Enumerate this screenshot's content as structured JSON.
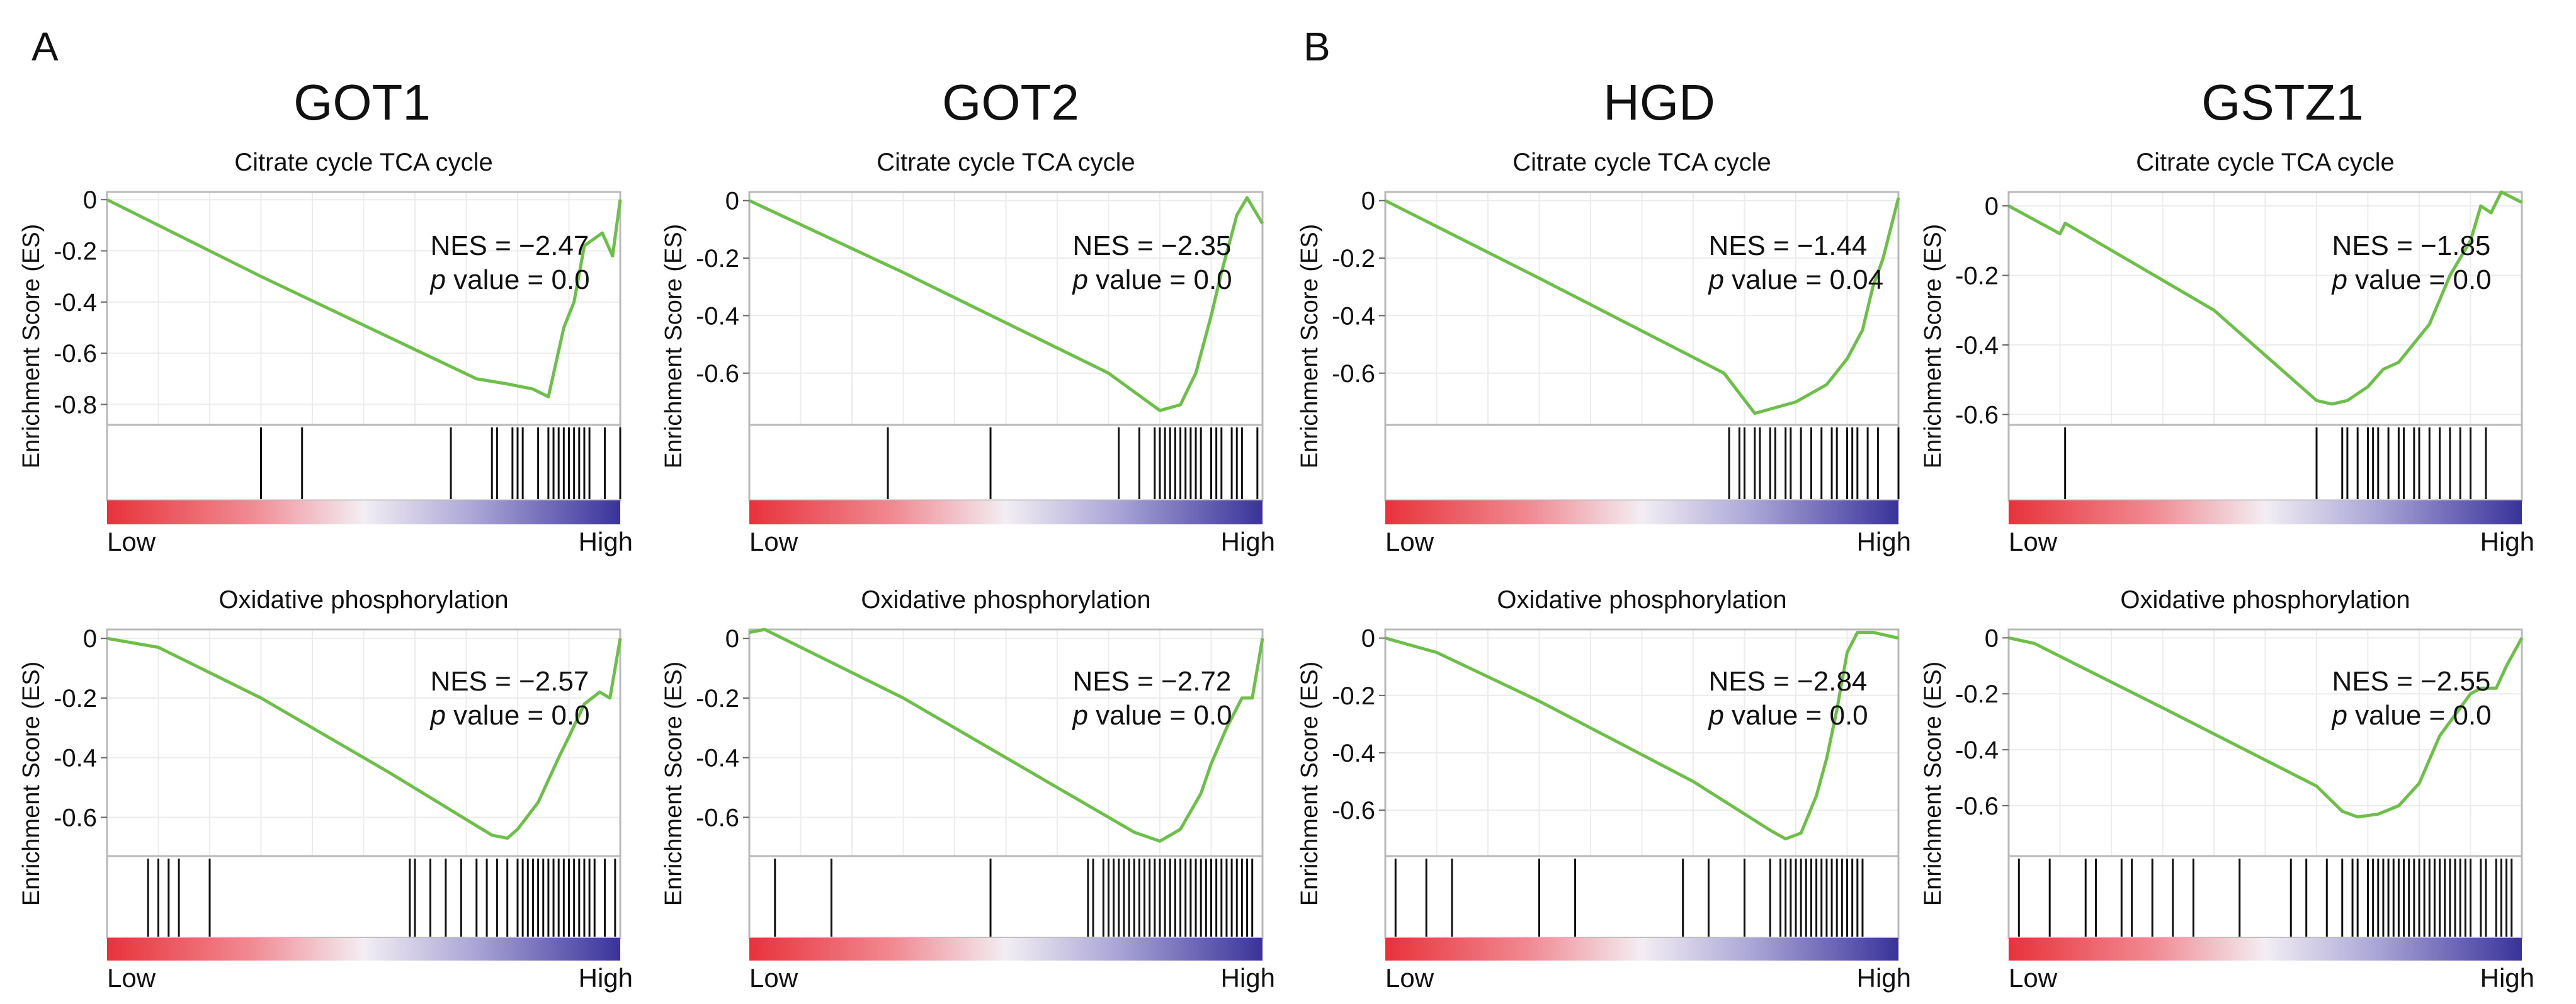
{
  "colors": {
    "es_line": "#6cbf47",
    "frame": "#b9b9b9",
    "grid": "#ececec",
    "hit": "#111111",
    "bar_red": "#e8323a",
    "bar_white": "#f2eef3",
    "bar_blue": "#39339a"
  },
  "panel_labels": [
    "A",
    "B"
  ],
  "columns": [
    "GOT1",
    "GOT2",
    "HGD",
    "GSTZ1"
  ],
  "chart_data": [
    {
      "type": "line",
      "gene": "GOT1",
      "title": "Citrate cycle TCA cycle",
      "ylabel": "Enrichment Score (ES)",
      "x_low_label": "Low",
      "x_high_label": "High",
      "ylim": [
        -0.88,
        0.03
      ],
      "yticks": [
        0,
        -0.2,
        -0.4,
        -0.6,
        -0.8
      ],
      "ytick_labels": [
        "0",
        "-0.2",
        "-0.4",
        "-0.6",
        "-0.8"
      ],
      "nes_text": "NES = −2.47",
      "p_prefix": "p",
      "p_text": " value = 0.0",
      "es_curve": {
        "x": [
          0,
          0.3,
          0.72,
          0.78,
          0.83,
          0.86,
          0.89,
          0.91,
          0.93,
          0.965,
          0.985,
          1.0
        ],
        "y": [
          0,
          -0.3,
          -0.7,
          -0.72,
          -0.74,
          -0.77,
          -0.5,
          -0.4,
          -0.18,
          -0.13,
          -0.22,
          0.0
        ]
      },
      "hits": [
        0.3,
        0.38,
        0.67,
        0.75,
        0.76,
        0.79,
        0.8,
        0.81,
        0.84,
        0.86,
        0.87,
        0.88,
        0.89,
        0.9,
        0.91,
        0.92,
        0.93,
        0.94,
        0.97,
        1.0
      ]
    },
    {
      "type": "line",
      "gene": "GOT2",
      "title": "Citrate cycle TCA cycle",
      "ylabel": "Enrichment Score (ES)",
      "x_low_label": "Low",
      "x_high_label": "High",
      "ylim": [
        -0.78,
        0.03
      ],
      "yticks": [
        0,
        -0.2,
        -0.4,
        -0.6
      ],
      "ytick_labels": [
        "0",
        "-0.2",
        "-0.4",
        "-0.6"
      ],
      "nes_text": "NES = −2.35",
      "p_prefix": "p",
      "p_text": " value = 0.0",
      "es_curve": {
        "x": [
          0,
          0.3,
          0.7,
          0.8,
          0.84,
          0.87,
          0.9,
          0.92,
          0.95,
          0.97,
          1.0
        ],
        "y": [
          0,
          -0.25,
          -0.6,
          -0.73,
          -0.71,
          -0.6,
          -0.4,
          -0.25,
          -0.05,
          0.01,
          -0.08
        ]
      },
      "hits": [
        0.27,
        0.47,
        0.72,
        0.76,
        0.79,
        0.8,
        0.81,
        0.82,
        0.83,
        0.84,
        0.85,
        0.86,
        0.87,
        0.88,
        0.9,
        0.91,
        0.92,
        0.94,
        0.95,
        0.96,
        0.99
      ]
    },
    {
      "type": "line",
      "gene": "HGD",
      "title": "Citrate cycle TCA cycle",
      "ylabel": "Enrichment Score (ES)",
      "x_low_label": "Low",
      "x_high_label": "High",
      "ylim": [
        -0.78,
        0.03
      ],
      "yticks": [
        0,
        -0.2,
        -0.4,
        -0.6
      ],
      "ytick_labels": [
        "0",
        "-0.2",
        "-0.4",
        "-0.6"
      ],
      "nes_text": "NES = −1.44",
      "p_prefix": "p",
      "p_text": " value = 0.04",
      "es_curve": {
        "x": [
          0,
          0.3,
          0.66,
          0.72,
          0.8,
          0.86,
          0.9,
          0.93,
          0.95,
          0.97,
          1.0
        ],
        "y": [
          0,
          -0.27,
          -0.6,
          -0.74,
          -0.7,
          -0.64,
          -0.55,
          -0.45,
          -0.3,
          -0.2,
          0.01
        ]
      },
      "hits": [
        0.67,
        0.69,
        0.7,
        0.72,
        0.73,
        0.75,
        0.76,
        0.78,
        0.79,
        0.81,
        0.83,
        0.85,
        0.87,
        0.88,
        0.9,
        0.91,
        0.92,
        0.94,
        0.96,
        1.0
      ]
    },
    {
      "type": "line",
      "gene": "GSTZ1",
      "title": "Citrate cycle TCA cycle",
      "ylabel": "Enrichment Score (ES)",
      "x_low_label": "Low",
      "x_high_label": "High",
      "ylim": [
        -0.63,
        0.04
      ],
      "yticks": [
        0,
        -0.2,
        -0.4,
        -0.6
      ],
      "ytick_labels": [
        "0",
        "-0.2",
        "-0.4",
        "-0.6"
      ],
      "nes_text": "NES = −1.85",
      "p_prefix": "p",
      "p_text": " value = 0.0",
      "es_curve": {
        "x": [
          0,
          0.1,
          0.11,
          0.4,
          0.6,
          0.63,
          0.66,
          0.7,
          0.73,
          0.76,
          0.82,
          0.86,
          0.9,
          0.92,
          0.94,
          0.96,
          1.0
        ],
        "y": [
          0,
          -0.08,
          -0.05,
          -0.3,
          -0.56,
          -0.57,
          -0.56,
          -0.52,
          -0.47,
          -0.45,
          -0.34,
          -0.2,
          -0.1,
          0.0,
          -0.02,
          0.04,
          0.01
        ]
      },
      "hits": [
        0.11,
        0.6,
        0.65,
        0.66,
        0.68,
        0.7,
        0.71,
        0.72,
        0.74,
        0.76,
        0.77,
        0.79,
        0.8,
        0.82,
        0.84,
        0.86,
        0.88,
        0.9,
        0.93
      ]
    },
    {
      "type": "line",
      "gene": "GOT1",
      "title": "Oxidative phosphorylation",
      "ylabel": "Enrichment Score (ES)",
      "x_low_label": "Low",
      "x_high_label": "High",
      "ylim": [
        -0.73,
        0.03
      ],
      "yticks": [
        0,
        -0.2,
        -0.4,
        -0.6
      ],
      "ytick_labels": [
        "0",
        "-0.2",
        "-0.4",
        "-0.6"
      ],
      "nes_text": "NES = −2.57",
      "p_prefix": "p",
      "p_text": " value = 0.0",
      "es_curve": {
        "x": [
          0,
          0.1,
          0.3,
          0.55,
          0.75,
          0.78,
          0.8,
          0.84,
          0.88,
          0.9,
          0.93,
          0.96,
          0.98,
          1.0
        ],
        "y": [
          0,
          -0.03,
          -0.2,
          -0.45,
          -0.66,
          -0.67,
          -0.64,
          -0.55,
          -0.4,
          -0.33,
          -0.22,
          -0.18,
          -0.2,
          0.0
        ]
      },
      "hits": [
        0.08,
        0.1,
        0.12,
        0.14,
        0.2,
        0.59,
        0.6,
        0.63,
        0.66,
        0.69,
        0.72,
        0.74,
        0.76,
        0.78,
        0.8,
        0.81,
        0.82,
        0.83,
        0.84,
        0.85,
        0.86,
        0.87,
        0.88,
        0.89,
        0.9,
        0.91,
        0.92,
        0.93,
        0.94,
        0.95,
        0.97,
        0.99
      ]
    },
    {
      "type": "line",
      "gene": "GOT2",
      "title": "Oxidative phosphorylation",
      "ylabel": "Enrichment Score (ES)",
      "x_low_label": "Low",
      "x_high_label": "High",
      "ylim": [
        -0.73,
        0.03
      ],
      "yticks": [
        0,
        -0.2,
        -0.4,
        -0.6
      ],
      "ytick_labels": [
        "0",
        "-0.2",
        "-0.4",
        "-0.6"
      ],
      "nes_text": "NES = −2.72",
      "p_prefix": "p",
      "p_text": " value = 0.0",
      "es_curve": {
        "x": [
          0,
          0.03,
          0.3,
          0.6,
          0.75,
          0.8,
          0.84,
          0.88,
          0.9,
          0.93,
          0.96,
          0.98,
          1.0
        ],
        "y": [
          0.02,
          0.03,
          -0.2,
          -0.5,
          -0.65,
          -0.68,
          -0.64,
          -0.52,
          -0.42,
          -0.3,
          -0.2,
          -0.2,
          0.0
        ]
      },
      "hits": [
        0.05,
        0.16,
        0.47,
        0.66,
        0.67,
        0.69,
        0.7,
        0.71,
        0.72,
        0.73,
        0.74,
        0.75,
        0.76,
        0.77,
        0.78,
        0.79,
        0.8,
        0.81,
        0.82,
        0.83,
        0.84,
        0.85,
        0.86,
        0.87,
        0.88,
        0.89,
        0.9,
        0.91,
        0.92,
        0.93,
        0.94,
        0.95,
        0.96,
        0.97,
        0.98
      ]
    },
    {
      "type": "line",
      "gene": "HGD",
      "title": "Oxidative phosphorylation",
      "ylabel": "Enrichment Score (ES)",
      "x_low_label": "Low",
      "x_high_label": "High",
      "ylim": [
        -0.76,
        0.03
      ],
      "yticks": [
        0,
        -0.2,
        -0.4,
        -0.6
      ],
      "ytick_labels": [
        "0",
        "-0.2",
        "-0.4",
        "-0.6"
      ],
      "nes_text": "NES = −2.84",
      "p_prefix": "p",
      "p_text": " value = 0.0",
      "es_curve": {
        "x": [
          0,
          0.1,
          0.3,
          0.6,
          0.75,
          0.78,
          0.81,
          0.84,
          0.86,
          0.88,
          0.9,
          0.92,
          0.95,
          1.0
        ],
        "y": [
          0,
          -0.05,
          -0.22,
          -0.5,
          -0.67,
          -0.7,
          -0.68,
          -0.55,
          -0.42,
          -0.25,
          -0.05,
          0.02,
          0.02,
          0.0
        ]
      },
      "hits": [
        0.02,
        0.08,
        0.13,
        0.3,
        0.37,
        0.58,
        0.63,
        0.7,
        0.75,
        0.77,
        0.78,
        0.79,
        0.8,
        0.81,
        0.82,
        0.83,
        0.84,
        0.85,
        0.86,
        0.87,
        0.88,
        0.89,
        0.9,
        0.91,
        0.92,
        0.93
      ]
    },
    {
      "type": "line",
      "gene": "GSTZ1",
      "title": "Oxidative phosphorylation",
      "ylabel": "Enrichment Score (ES)",
      "x_low_label": "Low",
      "x_high_label": "High",
      "ylim": [
        -0.78,
        0.03
      ],
      "yticks": [
        0,
        -0.2,
        -0.4,
        -0.6
      ],
      "ytick_labels": [
        "0",
        "-0.2",
        "-0.4",
        "-0.6"
      ],
      "nes_text": "NES = −2.55",
      "p_prefix": "p",
      "p_text": " value = 0.0",
      "es_curve": {
        "x": [
          0,
          0.05,
          0.3,
          0.6,
          0.65,
          0.68,
          0.72,
          0.76,
          0.8,
          0.84,
          0.88,
          0.9,
          0.92,
          0.95,
          0.97,
          1.0
        ],
        "y": [
          0,
          -0.02,
          -0.25,
          -0.53,
          -0.62,
          -0.64,
          -0.63,
          -0.6,
          -0.52,
          -0.35,
          -0.25,
          -0.2,
          -0.18,
          -0.18,
          -0.1,
          0.0
        ]
      },
      "hits": [
        0.02,
        0.08,
        0.15,
        0.17,
        0.22,
        0.24,
        0.28,
        0.32,
        0.36,
        0.45,
        0.55,
        0.58,
        0.62,
        0.65,
        0.67,
        0.68,
        0.7,
        0.71,
        0.72,
        0.73,
        0.74,
        0.75,
        0.76,
        0.77,
        0.78,
        0.79,
        0.8,
        0.81,
        0.82,
        0.83,
        0.84,
        0.85,
        0.86,
        0.87,
        0.88,
        0.89,
        0.9,
        0.92,
        0.93,
        0.95,
        0.96,
        0.97,
        0.98
      ]
    }
  ]
}
